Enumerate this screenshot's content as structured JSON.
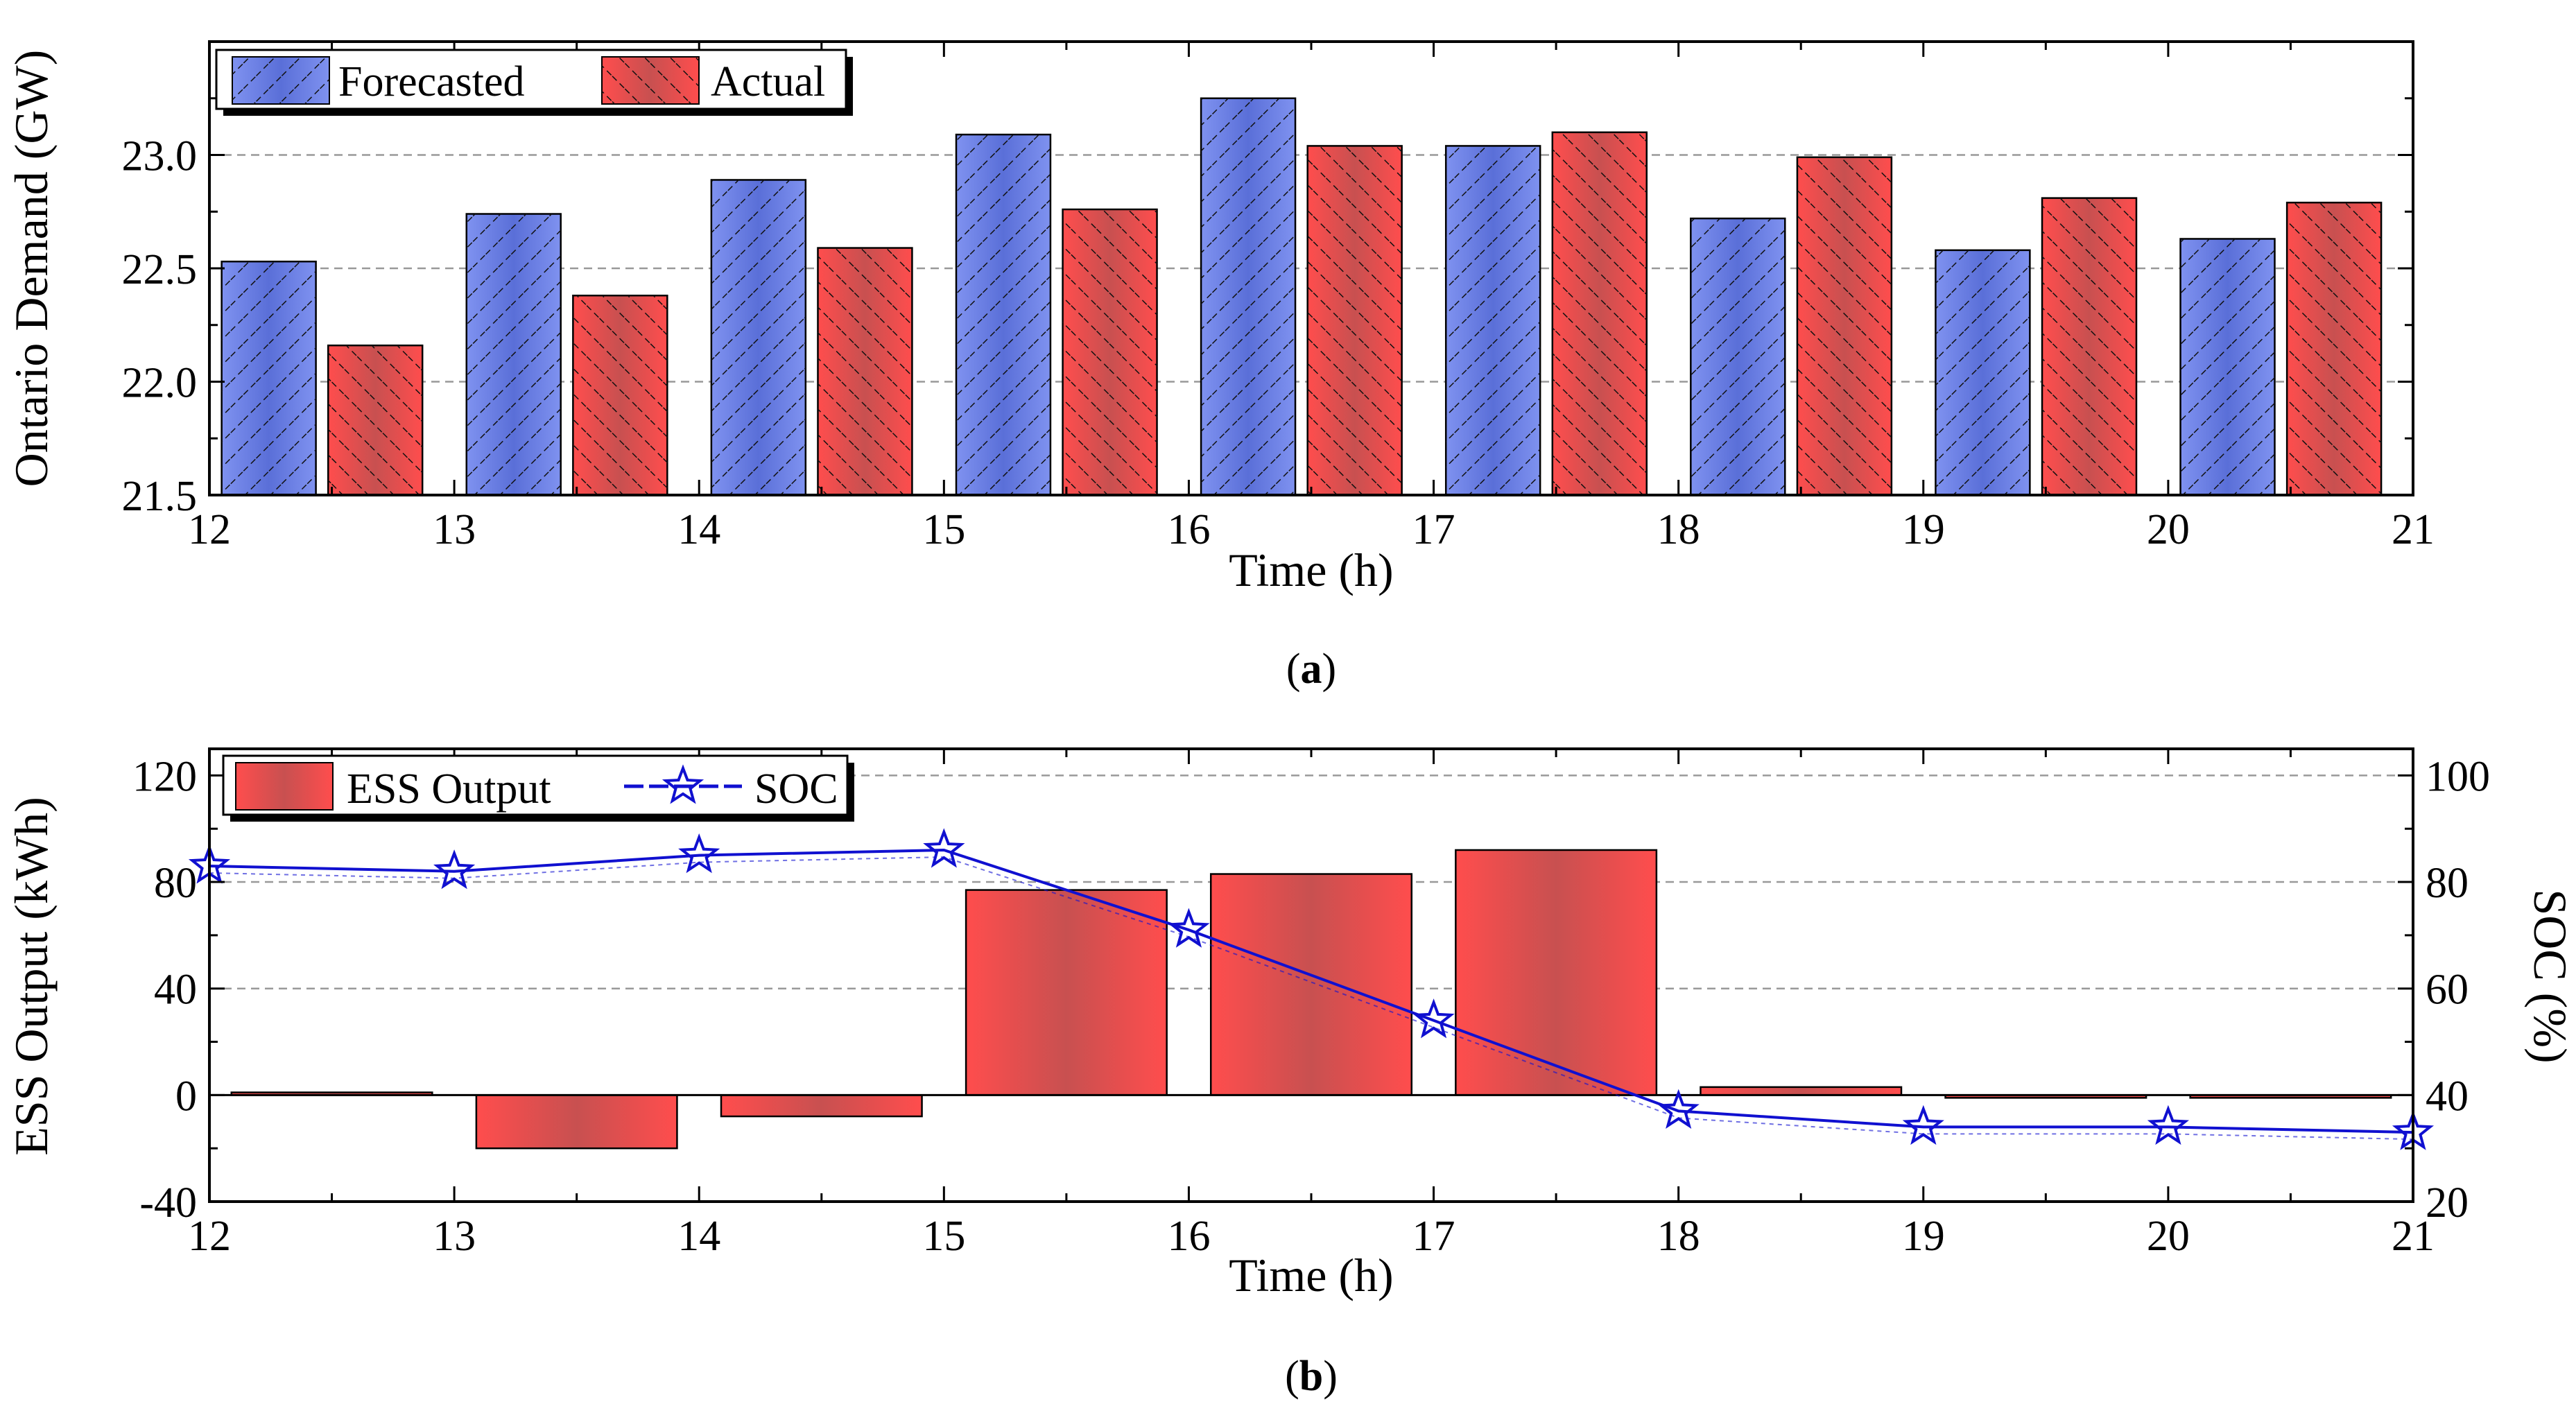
{
  "chart_data": [
    {
      "panel": "a",
      "panel_label": "a",
      "type": "bar",
      "xlabel": "Time (h)",
      "ylabel": "Ontario Demand (GW)",
      "xlim": [
        12,
        21
      ],
      "ylim": [
        21.5,
        23.5
      ],
      "x_ticks": [
        "12",
        "13",
        "14",
        "15",
        "16",
        "17",
        "18",
        "19",
        "20",
        "21"
      ],
      "y_ticks": [
        "21.5",
        "22.0",
        "22.5",
        "23.0"
      ],
      "categories": [
        "12",
        "13",
        "14",
        "15",
        "16",
        "17",
        "18",
        "19",
        "20"
      ],
      "series": [
        {
          "name": "Forecasted",
          "color": "#6a7fe6",
          "hatch": "forward",
          "values": [
            22.53,
            22.74,
            22.89,
            23.09,
            23.25,
            23.04,
            22.72,
            22.58,
            22.63
          ]
        },
        {
          "name": "Actual",
          "color": "#f04a4a",
          "hatch": "back",
          "values": [
            22.16,
            22.38,
            22.59,
            22.76,
            23.04,
            23.1,
            22.99,
            22.81,
            22.79
          ]
        }
      ],
      "legend": "top-left",
      "grid": "horizontal dashed"
    },
    {
      "panel": "b",
      "panel_label": "b",
      "type": "bar+line",
      "xlabel": "Time (h)",
      "ylabel": "ESS Output (kWh)",
      "y2label": "SOC (%)",
      "xlim": [
        12,
        21
      ],
      "ylim": [
        -40,
        130
      ],
      "y2lim": [
        20,
        105
      ],
      "x_ticks": [
        "12",
        "13",
        "14",
        "15",
        "16",
        "17",
        "18",
        "19",
        "20",
        "21"
      ],
      "y_ticks": [
        "-40",
        "0",
        "40",
        "80",
        "120"
      ],
      "y2_ticks": [
        "20",
        "40",
        "60",
        "80",
        "100"
      ],
      "categories": [
        "12",
        "13",
        "14",
        "15",
        "16",
        "17",
        "18",
        "19",
        "20"
      ],
      "bars": {
        "name": "ESS Output",
        "color": "#f04a4a",
        "values": [
          1,
          -20,
          -8,
          77,
          83,
          92,
          3,
          -1,
          -1
        ]
      },
      "line": {
        "name": "SOC",
        "color": "#1010d0",
        "marker": "star",
        "x": [
          12,
          13,
          14,
          15,
          16,
          17,
          18,
          19,
          20,
          21
        ],
        "values": [
          83,
          82,
          85,
          86,
          71,
          54,
          37,
          34,
          34,
          33
        ]
      },
      "legend": "top-left",
      "grid": "horizontal dashed"
    }
  ]
}
